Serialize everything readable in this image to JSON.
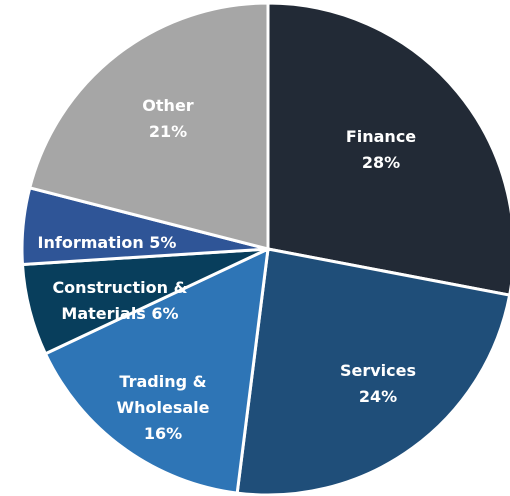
{
  "chart_data": {
    "type": "pie",
    "categories": [
      "Finance",
      "Services",
      "Trading & Wholesale",
      "Construction & Materials",
      "Information",
      "Other"
    ],
    "values": [
      28,
      24,
      16,
      6,
      5,
      21
    ],
    "value_labels": [
      "28%",
      "24%",
      "16%",
      "6%",
      "5%",
      "21%"
    ],
    "colors": [
      "#222a36",
      "#1f4e79",
      "#2e75b6",
      "#083e5c",
      "#2f5597",
      "#a6a6a6"
    ]
  }
}
